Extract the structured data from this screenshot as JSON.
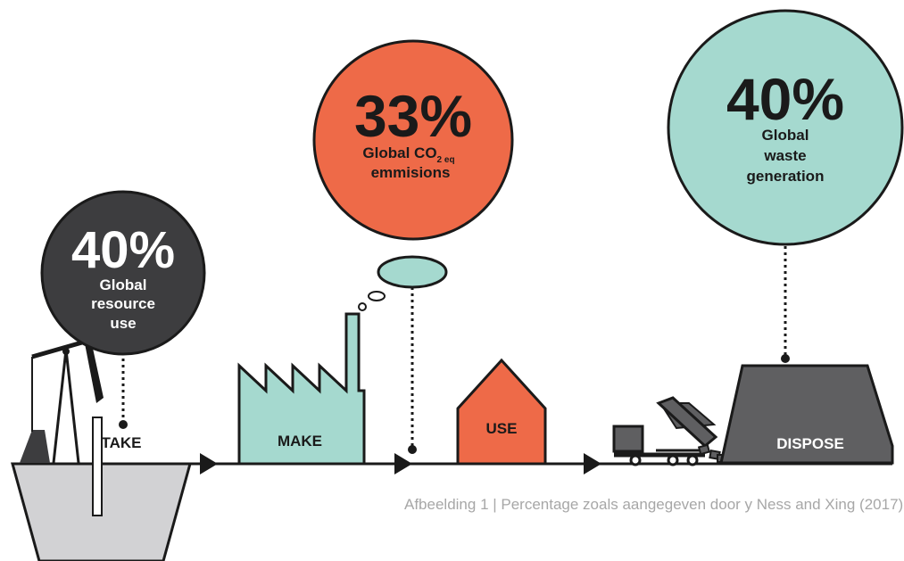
{
  "colors": {
    "dark": "#3d3d3f",
    "orange": "#ee6a48",
    "teal": "#a5d9cf",
    "gray": "#5f5f61",
    "light_gray": "#d2d2d4",
    "outline": "#1a1a1a",
    "caption": "#a7a7a7"
  },
  "circles": {
    "take": {
      "percent": "40%",
      "line1": "Global",
      "line2": "resource",
      "line3": "use"
    },
    "make": {
      "percent": "33%",
      "line1": "Global CO",
      "sub": "2 eq",
      "line2": "emmisions"
    },
    "dispose": {
      "percent": "40%",
      "line1": "Global",
      "line2": "waste",
      "line3": "generation"
    }
  },
  "stages": {
    "take": "TAKE",
    "make": "MAKE",
    "use": "USE",
    "dispose": "DISPOSE"
  },
  "caption": "Afbeelding 1 | Percentage zoals aangegeven door y Ness and Xing (2017)"
}
